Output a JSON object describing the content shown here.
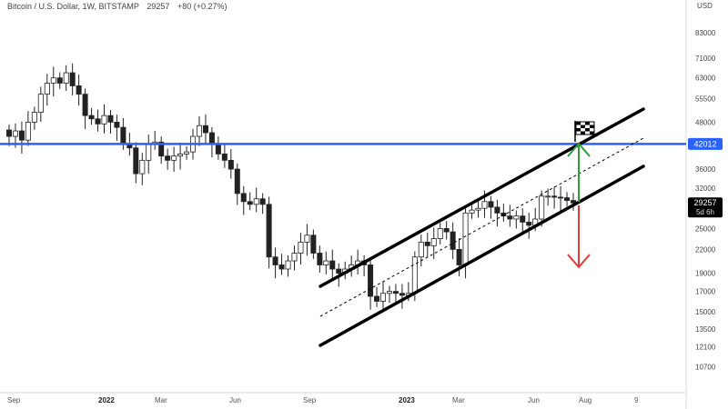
{
  "header": {
    "symbol": "Bitcoin / U.S. Dollar, 1W, BITSTAMP",
    "price": "29257",
    "change": "+80 (+0.27%)"
  },
  "currency_label": "USD",
  "colors": {
    "resistance_line": "#2962ff",
    "target_arrow_up": "#2e9d3a",
    "target_arrow_down": "#e53935",
    "channel": "#000000",
    "price_tag_bg": "#000000"
  },
  "chart_data": {
    "type": "candlestick",
    "y_scale": "log",
    "ylim": [
      9500,
      95000
    ],
    "y_ticks": [
      "83000",
      "71000",
      "63000",
      "55500",
      "48000",
      "42012",
      "36000",
      "32000",
      "29257",
      "25000",
      "22000",
      "19000",
      "17000",
      "15000",
      "13500",
      "12100",
      "10700"
    ],
    "x_ticks": [
      "Sep",
      "2022",
      "Mar",
      "Jun",
      "Sep",
      "2023",
      "Mar",
      "Jun",
      "Aug",
      "9"
    ],
    "last_price": {
      "value": 29257,
      "label": "29257",
      "countdown": "5d 6h"
    },
    "resistance": {
      "value": 42012,
      "label": "42012"
    },
    "closes": [
      44000,
      45500,
      43000,
      48000,
      51000,
      57000,
      61000,
      63000,
      61000,
      65000,
      60000,
      57000,
      50000,
      49000,
      47500,
      50000,
      48000,
      46500,
      42000,
      41000,
      35000,
      38000,
      42000,
      42500,
      39000,
      38000,
      39000,
      39500,
      40000,
      44000,
      47000,
      45000,
      42000,
      39500,
      38000,
      36000,
      31000,
      29500,
      29000,
      30000,
      29000,
      21000,
      20000,
      19500,
      20500,
      21500,
      23000,
      24000,
      21500,
      20000,
      20500,
      19500,
      19000,
      19500,
      20000,
      20500,
      20000,
      16500,
      16000,
      16800,
      17000,
      16800,
      16600,
      16800,
      21000,
      23000,
      22500,
      23500,
      25000,
      24500,
      22000,
      20000,
      27500,
      28000,
      28300,
      29500,
      28500,
      27500,
      27000,
      26500,
      27000,
      26000,
      25500,
      26500,
      30500,
      30500,
      30300,
      30200,
      29700,
      29257
    ]
  }
}
